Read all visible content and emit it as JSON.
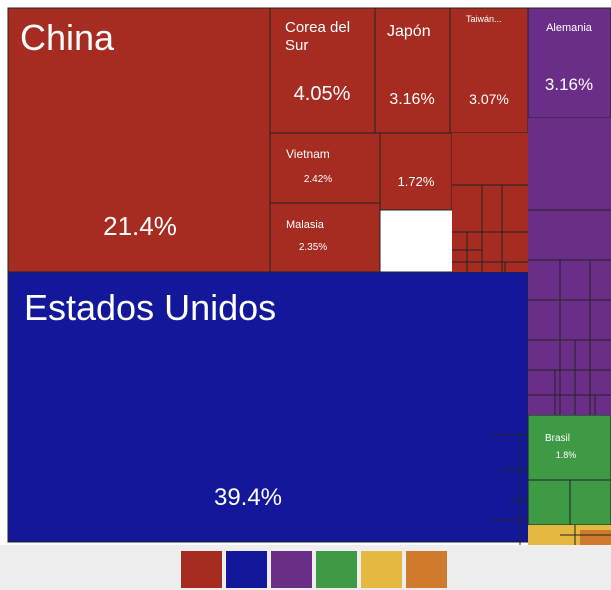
{
  "chart_data": {
    "type": "treemap",
    "categories": [
      "China",
      "Corea del Sur",
      "Japón",
      "Taiwán...",
      "Vietnam",
      null,
      "Malasia",
      "Estados Unidos",
      "Alemania",
      "Brasil"
    ],
    "values": [
      21.4,
      4.05,
      3.16,
      3.07,
      2.42,
      1.72,
      2.35,
      39.4,
      3.16,
      1.8
    ],
    "value_labels": [
      "21.4%",
      "4.05%",
      "3.16%",
      "3.07%",
      "2.42%",
      "1.72%",
      "2.35%",
      "39.4%",
      "3.16%",
      "1.8%"
    ],
    "colors": [
      "#a62c22",
      "#a62c22",
      "#a62c22",
      "#a62c22",
      "#a62c22",
      "#a62c22",
      "#a62c22",
      "#13189a",
      "#6a2e88",
      "#3f9a46"
    ],
    "legend_colors": [
      "#a62c22",
      "#13189a",
      "#6a2e88",
      "#3f9a46",
      "#e5b840",
      "#d07a2e"
    ]
  }
}
